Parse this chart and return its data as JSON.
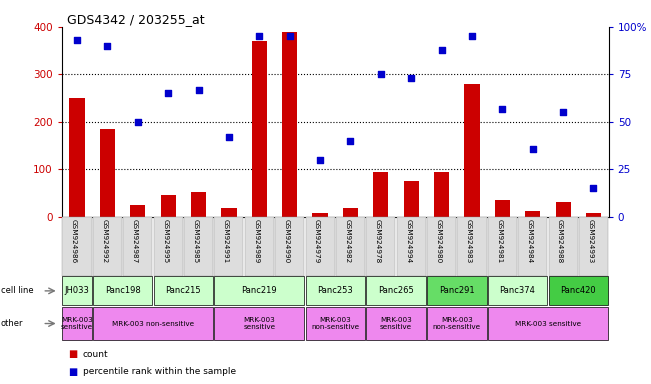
{
  "title": "GDS4342 / 203255_at",
  "samples": [
    "GSM924986",
    "GSM924992",
    "GSM924987",
    "GSM924995",
    "GSM924985",
    "GSM924991",
    "GSM924989",
    "GSM924990",
    "GSM924979",
    "GSM924982",
    "GSM924978",
    "GSM924994",
    "GSM924980",
    "GSM924983",
    "GSM924981",
    "GSM924984",
    "GSM924988",
    "GSM924993"
  ],
  "counts": [
    250,
    185,
    25,
    47,
    53,
    18,
    370,
    390,
    8,
    18,
    95,
    75,
    95,
    280,
    35,
    13,
    32,
    8
  ],
  "percentiles": [
    93,
    90,
    50,
    65,
    67,
    42,
    95,
    95,
    30,
    40,
    75,
    73,
    88,
    95,
    57,
    36,
    55,
    15
  ],
  "cell_lines": [
    {
      "name": "JH033",
      "start": 0,
      "end": 1,
      "color": "#ccffcc"
    },
    {
      "name": "Panc198",
      "start": 1,
      "end": 3,
      "color": "#ccffcc"
    },
    {
      "name": "Panc215",
      "start": 3,
      "end": 5,
      "color": "#ccffcc"
    },
    {
      "name": "Panc219",
      "start": 5,
      "end": 8,
      "color": "#ccffcc"
    },
    {
      "name": "Panc253",
      "start": 8,
      "end": 10,
      "color": "#ccffcc"
    },
    {
      "name": "Panc265",
      "start": 10,
      "end": 12,
      "color": "#ccffcc"
    },
    {
      "name": "Panc291",
      "start": 12,
      "end": 14,
      "color": "#66dd66"
    },
    {
      "name": "Panc374",
      "start": 14,
      "end": 16,
      "color": "#ccffcc"
    },
    {
      "name": "Panc420",
      "start": 16,
      "end": 18,
      "color": "#44cc44"
    }
  ],
  "other_groups": [
    {
      "label": "MRK-003\nsensitive",
      "start": 0,
      "end": 1,
      "color": "#ee88ee"
    },
    {
      "label": "MRK-003 non-sensitive",
      "start": 1,
      "end": 5,
      "color": "#ee88ee"
    },
    {
      "label": "MRK-003\nsensitive",
      "start": 5,
      "end": 8,
      "color": "#ee88ee"
    },
    {
      "label": "MRK-003\nnon-sensitive",
      "start": 8,
      "end": 10,
      "color": "#ee88ee"
    },
    {
      "label": "MRK-003\nsensitive",
      "start": 10,
      "end": 12,
      "color": "#ee88ee"
    },
    {
      "label": "MRK-003\nnon-sensitive",
      "start": 12,
      "end": 14,
      "color": "#ee88ee"
    },
    {
      "label": "MRK-003 sensitive",
      "start": 14,
      "end": 18,
      "color": "#ee88ee"
    }
  ],
  "bar_color": "#cc0000",
  "dot_color": "#0000cc",
  "ylim_left": [
    0,
    400
  ],
  "ylim_right": [
    0,
    100
  ],
  "yticks_left": [
    0,
    100,
    200,
    300,
    400
  ],
  "yticks_right": [
    0,
    25,
    50,
    75,
    100
  ],
  "yticklabels_right": [
    "0",
    "25",
    "50",
    "75",
    "100%"
  ],
  "background_color": "#ffffff",
  "gsm_bg_color": "#dddddd"
}
